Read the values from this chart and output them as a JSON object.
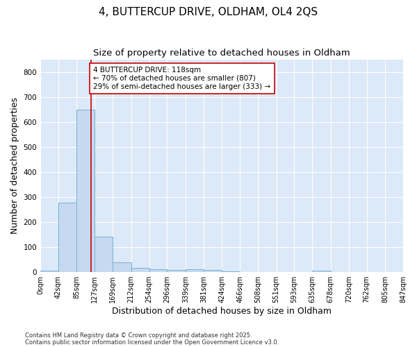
{
  "title": "4, BUTTERCUP DRIVE, OLDHAM, OL4 2QS",
  "subtitle": "Size of property relative to detached houses in Oldham",
  "xlabel": "Distribution of detached houses by size in Oldham",
  "ylabel": "Number of detached properties",
  "footnote1": "Contains HM Land Registry data © Crown copyright and database right 2025.",
  "footnote2": "Contains public sector information licensed under the Open Government Licence v3.0.",
  "bar_edges": [
    0,
    42,
    85,
    127,
    169,
    212,
    254,
    296,
    339,
    381,
    424,
    466,
    508,
    551,
    593,
    635,
    678,
    720,
    762,
    805,
    847
  ],
  "bar_heights": [
    7,
    278,
    650,
    143,
    38,
    18,
    13,
    10,
    12,
    10,
    4,
    0,
    0,
    0,
    0,
    5,
    0,
    0,
    0,
    0
  ],
  "bar_color": "#c5d9f0",
  "bar_edgecolor": "#7bafd4",
  "vline_x": 118,
  "vline_color": "#cc0000",
  "annotation_text": "4 BUTTERCUP DRIVE: 118sqm\n← 70% of detached houses are smaller (807)\n29% of semi-detached houses are larger (333) →",
  "annotation_box_edgecolor": "#cc0000",
  "annotation_box_facecolor": "#ffffff",
  "ylim": [
    0,
    850
  ],
  "yticks": [
    0,
    100,
    200,
    300,
    400,
    500,
    600,
    700,
    800
  ],
  "tick_labels": [
    "0sqm",
    "42sqm",
    "85sqm",
    "127sqm",
    "169sqm",
    "212sqm",
    "254sqm",
    "296sqm",
    "339sqm",
    "381sqm",
    "424sqm",
    "466sqm",
    "508sqm",
    "551sqm",
    "593sqm",
    "635sqm",
    "678sqm",
    "720sqm",
    "762sqm",
    "805sqm",
    "847sqm"
  ],
  "figure_bg_color": "#ffffff",
  "plot_bg_color": "#dce9f8",
  "title_fontsize": 11,
  "subtitle_fontsize": 9.5,
  "xlabel_fontsize": 9,
  "ylabel_fontsize": 9,
  "tick_fontsize": 7,
  "annot_fontsize": 7.5,
  "footnote_fontsize": 6
}
